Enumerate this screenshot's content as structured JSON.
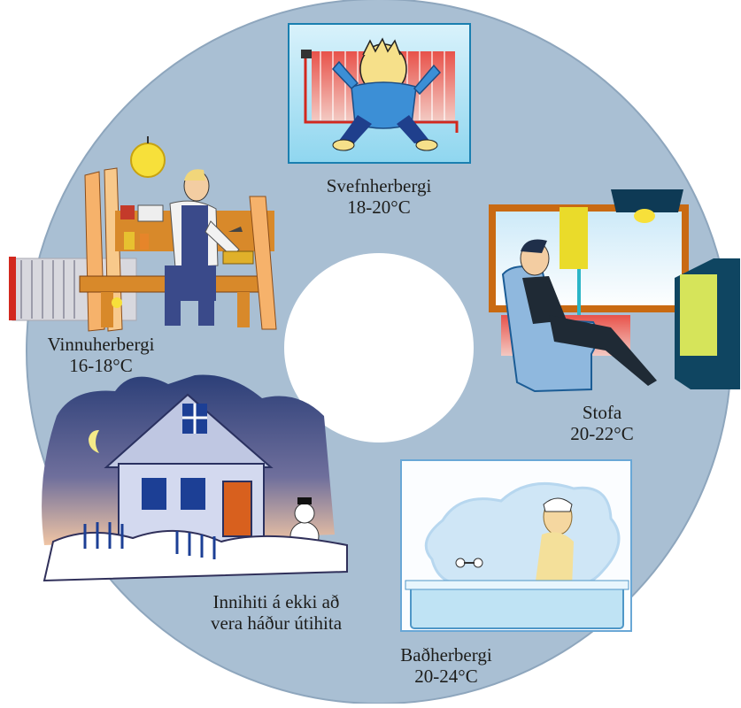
{
  "rooms": {
    "bedroom": {
      "name": "Svefnherbergi",
      "temp": "18-20°C",
      "icon": "baby-by-radiator-illustration"
    },
    "workroom": {
      "name": "Vinnuherbergi",
      "temp": "16-18°C",
      "icon": "carpenter-at-workbench-illustration"
    },
    "living": {
      "name": "Stofa",
      "temp": "20-22°C",
      "icon": "person-in-armchair-watching-tv-illustration"
    },
    "bathroom": {
      "name": "Baðherbergi",
      "temp": "20-24°C",
      "icon": "person-in-bathtub-illustration"
    }
  },
  "house": {
    "line1": "Innihiti á ekki að",
    "line2": "vera háður útihita",
    "icon": "snowy-house-at-night-illustration"
  },
  "colors": {
    "disc": "#a9bfd3",
    "disc_edge": "#8ea6bd",
    "hole": "#ffffff"
  }
}
